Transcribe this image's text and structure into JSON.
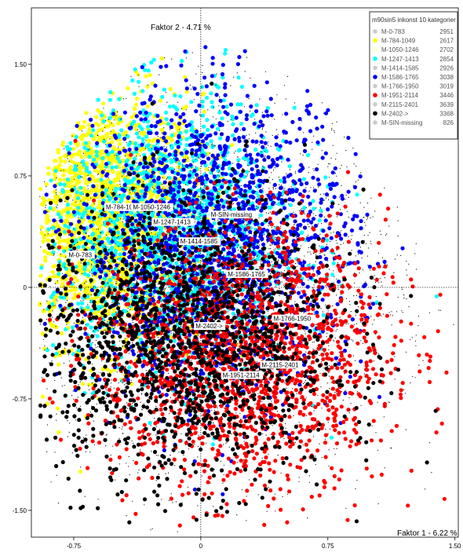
{
  "chart_data": {
    "type": "scatter",
    "x_axis": {
      "label": "Faktor 1 - 6.22 %",
      "ticks": [
        -0.75,
        0,
        0.75,
        1.5
      ],
      "tick_labels": [
        "-0.75",
        "0",
        "0.75",
        "1.50"
      ],
      "range": [
        -1.0,
        1.52
      ]
    },
    "y_axis": {
      "label": "Faktor 2 - 4.71 %",
      "ticks": [
        1.5,
        0.75,
        0,
        -0.75,
        -1.5
      ],
      "tick_labels": [
        "1.50",
        "0.75",
        "0",
        "-0.75",
        "-1.50"
      ],
      "range": [
        -1.68,
        1.88
      ]
    },
    "legend": {
      "title": "m90sin5 inkonst 10 kategorier",
      "placement": "top-right",
      "entries": [
        {
          "name": "M-0-783",
          "count": "2951",
          "color": "#cccccc"
        },
        {
          "name": "M-784-1049",
          "count": "2617",
          "color": "#ffff00"
        },
        {
          "name": "M-1050-1246",
          "count": "2702",
          "color": "#ffffcc"
        },
        {
          "name": "M-1247-1413",
          "count": "2854",
          "color": "#00ffff"
        },
        {
          "name": "M-1414-1585",
          "count": "2926",
          "color": "#cccccc"
        },
        {
          "name": "M-1586-1765",
          "count": "3038",
          "color": "#0000ff"
        },
        {
          "name": "M-1766-1950",
          "count": "3019",
          "color": "#cccccc"
        },
        {
          "name": "M-1951-2114",
          "count": "3446",
          "color": "#ff0000"
        },
        {
          "name": "M-2115-2401",
          "count": "3639",
          "color": "#cccccc"
        },
        {
          "name": "M-2402->",
          "count": "3368",
          "color": "#000000"
        },
        {
          "name": "M-SIN-missing",
          "count": "826",
          "color": "#cccccc"
        }
      ]
    },
    "category_labels": [
      {
        "text": "M-784-1049",
        "x": -0.57,
        "y": 0.54
      },
      {
        "text": "M-1050-1246",
        "x": -0.41,
        "y": 0.54
      },
      {
        "text": "M-SIN-missing",
        "x": 0.05,
        "y": 0.49
      },
      {
        "text": "M-1247-1413",
        "x": -0.29,
        "y": 0.44
      },
      {
        "text": "M-1414-1585",
        "x": -0.13,
        "y": 0.31
      },
      {
        "text": "M-0-783",
        "x": -0.79,
        "y": 0.22
      },
      {
        "text": "M-1586-1765",
        "x": 0.15,
        "y": 0.09
      },
      {
        "text": "M-1766-1950",
        "x": 0.42,
        "y": -0.21
      },
      {
        "text": "M-2402->",
        "x": -0.04,
        "y": -0.26
      },
      {
        "text": "M-2115-2401",
        "x": 0.35,
        "y": -0.52
      },
      {
        "text": "M-1951-2114",
        "x": 0.12,
        "y": -0.59
      }
    ],
    "series_layers": [
      {
        "color": "#ffff00",
        "cx": -0.55,
        "cy": 0.45,
        "sx": 0.28,
        "sy": 0.42,
        "n": 2000,
        "r": 2.6
      },
      {
        "color": "#00ffff",
        "cx": -0.15,
        "cy": 0.35,
        "sx": 0.36,
        "sy": 0.45,
        "n": 1700,
        "r": 2.6
      },
      {
        "color": "#0000ff",
        "cx": 0.1,
        "cy": 0.3,
        "sx": 0.4,
        "sy": 0.5,
        "n": 1700,
        "r": 2.6
      },
      {
        "color": "#ff0000",
        "cx": 0.25,
        "cy": -0.45,
        "sx": 0.42,
        "sy": 0.45,
        "n": 1800,
        "r": 2.6
      },
      {
        "color": "#000000",
        "cx": -0.1,
        "cy": -0.35,
        "sx": 0.45,
        "sy": 0.48,
        "n": 1700,
        "r": 2.6
      },
      {
        "color": "#000000",
        "cx": 0.05,
        "cy": 0.0,
        "sx": 0.55,
        "sy": 0.6,
        "n": 3500,
        "r": 0.6
      }
    ]
  }
}
